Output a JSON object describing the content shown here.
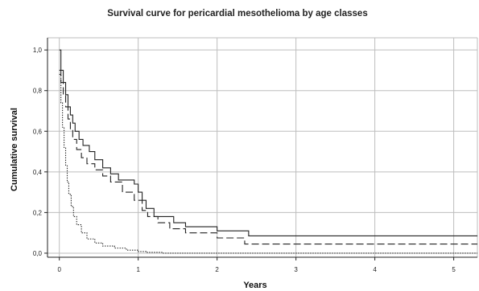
{
  "chart_data": {
    "type": "line",
    "title": "Survival curve for pericardial mesothelioma by age classes",
    "xlabel": "Years",
    "ylabel": "Cumulative survival",
    "xlim": [
      -0.15,
      5.3
    ],
    "ylim": [
      -0.02,
      1.06
    ],
    "x_ticks": [
      0,
      1,
      2,
      3,
      4,
      5
    ],
    "x_tick_labels": [
      "0",
      "1",
      "2",
      "3",
      "4",
      "5"
    ],
    "y_ticks": [
      0,
      0.2,
      0.4,
      0.6,
      0.8,
      1.0
    ],
    "y_tick_labels": [
      "0,0",
      "0,2",
      "0,4",
      "0,6",
      "0,8",
      "1,0"
    ],
    "grid": true,
    "legend": "none",
    "series": [
      {
        "style": "solid",
        "color": "#222222",
        "x": [
          0,
          0.02,
          0.05,
          0.08,
          0.11,
          0.14,
          0.17,
          0.2,
          0.25,
          0.3,
          0.38,
          0.45,
          0.55,
          0.65,
          0.75,
          0.95,
          1.0,
          1.05,
          1.1,
          1.2,
          1.45,
          1.6,
          2.0,
          2.4,
          3.0,
          4.0,
          5.3
        ],
        "y": [
          1.0,
          0.9,
          0.84,
          0.78,
          0.72,
          0.68,
          0.64,
          0.6,
          0.56,
          0.53,
          0.5,
          0.46,
          0.42,
          0.39,
          0.36,
          0.34,
          0.3,
          0.26,
          0.22,
          0.18,
          0.15,
          0.13,
          0.11,
          0.085,
          0.085,
          0.085,
          0.085
        ]
      },
      {
        "style": "dashed",
        "color": "#222222",
        "x": [
          0,
          0.02,
          0.05,
          0.08,
          0.11,
          0.14,
          0.17,
          0.22,
          0.28,
          0.35,
          0.45,
          0.55,
          0.65,
          0.8,
          0.95,
          1.05,
          1.12,
          1.25,
          1.4,
          1.6,
          2.0,
          2.35,
          3.0,
          4.0,
          5.3
        ],
        "y": [
          0.9,
          0.84,
          0.78,
          0.72,
          0.66,
          0.61,
          0.56,
          0.51,
          0.47,
          0.44,
          0.41,
          0.38,
          0.35,
          0.3,
          0.26,
          0.21,
          0.18,
          0.15,
          0.12,
          0.1,
          0.075,
          0.045,
          0.045,
          0.045,
          0.045
        ]
      },
      {
        "style": "dotted",
        "color": "#222222",
        "x": [
          0,
          0.02,
          0.04,
          0.06,
          0.08,
          0.1,
          0.12,
          0.15,
          0.18,
          0.22,
          0.28,
          0.35,
          0.45,
          0.55,
          0.7,
          0.85,
          1.0,
          1.1,
          1.3,
          5.3
        ],
        "y": [
          0.88,
          0.74,
          0.62,
          0.52,
          0.43,
          0.35,
          0.29,
          0.23,
          0.18,
          0.14,
          0.1,
          0.07,
          0.05,
          0.035,
          0.025,
          0.015,
          0.008,
          0.004,
          0.0,
          0.0
        ]
      }
    ]
  }
}
